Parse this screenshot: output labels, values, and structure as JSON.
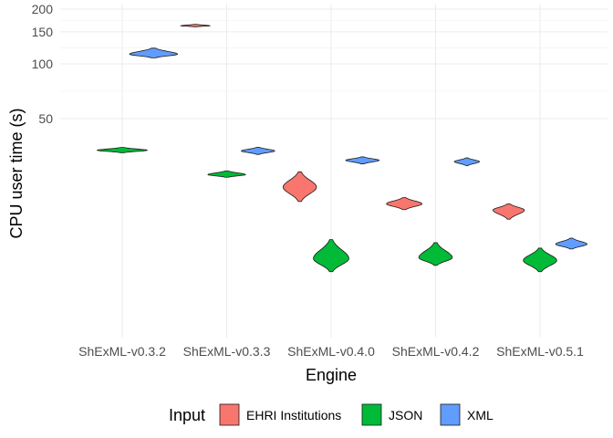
{
  "chart_data": {
    "type": "violin",
    "xlabel": "Engine",
    "ylabel": "CPU user time (s)",
    "y_scale": "log",
    "y_ticks": [
      50,
      100,
      150,
      200
    ],
    "y_tick_labels": [
      "50",
      "100",
      "150",
      "200"
    ],
    "grid": true,
    "legend_position": "bottom",
    "legend_title": "Input",
    "categories": [
      "ShExML-v0.3.2",
      "ShExML-v0.3.3",
      "ShExML-v0.4.0",
      "ShExML-v0.4.2",
      "ShExML-v0.5.1"
    ],
    "series": [
      {
        "name": "EHRI Institutions",
        "color": "#F8766D",
        "violins": [
          {
            "category": "ShExML-v0.3.3",
            "center": 162,
            "low": 160,
            "high": 165,
            "halfwidth": 0.14
          },
          {
            "category": "ShExML-v0.4.0",
            "center": 21,
            "low": 17.5,
            "high": 25.5,
            "halfwidth": 0.16
          },
          {
            "category": "ShExML-v0.4.2",
            "center": 17,
            "low": 15.8,
            "high": 18.4,
            "halfwidth": 0.17
          },
          {
            "category": "ShExML-v0.5.1",
            "center": 15.7,
            "low": 14,
            "high": 17,
            "halfwidth": 0.15
          }
        ]
      },
      {
        "name": "JSON",
        "color": "#00BA38",
        "violins": [
          {
            "category": "ShExML-v0.3.2",
            "center": 33.5,
            "low": 32.5,
            "high": 34.7,
            "halfwidth": 0.24
          },
          {
            "category": "ShExML-v0.3.3",
            "center": 24.6,
            "low": 23.8,
            "high": 25.8,
            "halfwidth": 0.18
          },
          {
            "category": "ShExML-v0.4.0",
            "center": 8.5,
            "low": 7.2,
            "high": 10.8,
            "halfwidth": 0.17
          },
          {
            "category": "ShExML-v0.4.2",
            "center": 8.6,
            "low": 7.8,
            "high": 10.4,
            "halfwidth": 0.16
          },
          {
            "category": "ShExML-v0.5.1",
            "center": 8.3,
            "low": 7.2,
            "high": 9.7,
            "halfwidth": 0.16
          }
        ]
      },
      {
        "name": "XML",
        "color": "#619CFF",
        "violins": [
          {
            "category": "ShExML-v0.3.2",
            "center": 113,
            "low": 108,
            "high": 122,
            "halfwidth": 0.23
          },
          {
            "category": "ShExML-v0.3.3",
            "center": 33.2,
            "low": 31.8,
            "high": 34.8,
            "halfwidth": 0.16
          },
          {
            "category": "ShExML-v0.4.0",
            "center": 29.5,
            "low": 28.2,
            "high": 30.8,
            "halfwidth": 0.16
          },
          {
            "category": "ShExML-v0.4.2",
            "center": 29.0,
            "low": 27.6,
            "high": 30.4,
            "halfwidth": 0.12
          },
          {
            "category": "ShExML-v0.5.1",
            "center": 10.2,
            "low": 9.6,
            "high": 11.0,
            "halfwidth": 0.15
          }
        ]
      }
    ]
  }
}
